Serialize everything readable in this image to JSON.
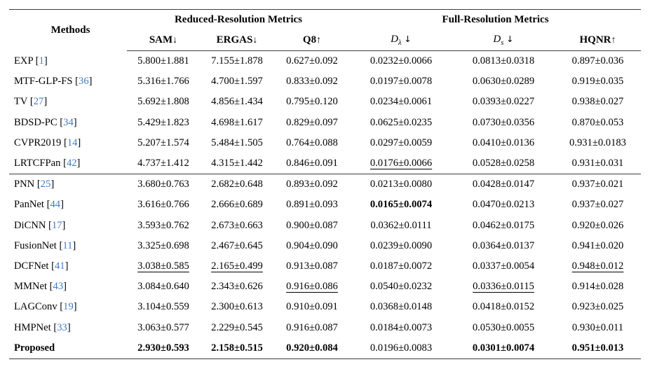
{
  "colors": {
    "citation": "#3f7cc4",
    "rule": "#3c3c3c",
    "text": "#000000"
  },
  "table": {
    "methods_header": "Methods",
    "group_headers": [
      {
        "label": "Reduced-Resolution Metrics",
        "span": 3
      },
      {
        "label": "Full-Resolution Metrics",
        "span": 3
      }
    ],
    "columns": [
      {
        "label": "SAM",
        "arrow": "↓"
      },
      {
        "label": "ERGAS",
        "arrow": "↓"
      },
      {
        "label": "Q8",
        "arrow": "↑"
      },
      {
        "label": "D",
        "sub": "λ",
        "arrow": "↓"
      },
      {
        "label": "D",
        "sub": "s",
        "arrow": "↓"
      },
      {
        "label": "HQNR",
        "arrow": "↑"
      }
    ],
    "rows": [
      {
        "method": "EXP",
        "cite": "1",
        "values": [
          "5.800±1.881",
          "7.155±1.878",
          "0.627±0.092",
          "0.0232±0.0066",
          "0.0813±0.0318",
          "0.897±0.036"
        ],
        "styles": [
          "",
          "",
          "",
          "",
          "",
          ""
        ]
      },
      {
        "method": "MTF-GLP-FS",
        "cite": "36",
        "values": [
          "5.316±1.766",
          "4.700±1.597",
          "0.833±0.092",
          "0.0197±0.0078",
          "0.0630±0.0289",
          "0.919±0.035"
        ],
        "styles": [
          "",
          "",
          "",
          "",
          "",
          ""
        ]
      },
      {
        "method": "TV",
        "cite": "27",
        "values": [
          "5.692±1.808",
          "4.856±1.434",
          "0.795±0.120",
          "0.0234±0.0061",
          "0.0393±0.0227",
          "0.938±0.027"
        ],
        "styles": [
          "",
          "",
          "",
          "",
          "",
          ""
        ]
      },
      {
        "method": "BDSD-PC",
        "cite": "34",
        "values": [
          "5.429±1.823",
          "4.698±1.617",
          "0.829±0.097",
          "0.0625±0.0235",
          "0.0730±0.0356",
          "0.870±0.053"
        ],
        "styles": [
          "",
          "",
          "",
          "",
          "",
          ""
        ]
      },
      {
        "method": "CVPR2019",
        "cite": "14",
        "values": [
          "5.207±1.574",
          "5.484±1.505",
          "0.764±0.088",
          "0.0297±0.0059",
          "0.0410±0.0136",
          "0.931±0.0183"
        ],
        "styles": [
          "",
          "",
          "",
          "",
          "",
          ""
        ]
      },
      {
        "method": "LRTCFPan",
        "cite": "42",
        "values": [
          "4.737±1.412",
          "4.315±1.442",
          "0.846±0.091",
          "0.0176±0.0066",
          "0.0528±0.0258",
          "0.931±0.031"
        ],
        "styles": [
          "",
          "",
          "",
          "u",
          "",
          ""
        ]
      },
      {
        "method": "PNN",
        "cite": "25",
        "rule_above": true,
        "values": [
          "3.680±0.763",
          "2.682±0.648",
          "0.893±0.092",
          "0.0213±0.0080",
          "0.0428±0.0147",
          "0.937±0.021"
        ],
        "styles": [
          "",
          "",
          "",
          "",
          "",
          ""
        ]
      },
      {
        "method": "PanNet",
        "cite": "44",
        "values": [
          "3.616±0.766",
          "2.666±0.689",
          "0.891±0.093",
          "0.0165±0.0074",
          "0.0470±0.0213",
          "0.937±0.027"
        ],
        "styles": [
          "",
          "",
          "",
          "b",
          "",
          ""
        ]
      },
      {
        "method": "DiCNN",
        "cite": "17",
        "values": [
          "3.593±0.762",
          "2.673±0.663",
          "0.900±0.087",
          "0.0362±0.0111",
          "0.0462±0.0175",
          "0.920±0.026"
        ],
        "styles": [
          "",
          "",
          "",
          "",
          "",
          ""
        ]
      },
      {
        "method": "FusionNet",
        "cite": "11",
        "values": [
          "3.325±0.698",
          "2.467±0.645",
          "0.904±0.090",
          "0.0239±0.0090",
          "0.0364±0.0137",
          "0.941±0.020"
        ],
        "styles": [
          "",
          "",
          "",
          "",
          "",
          ""
        ]
      },
      {
        "method": "DCFNet",
        "cite": "41",
        "values": [
          "3.038±0.585",
          "2.165±0.499",
          "0.913±0.087",
          "0.0187±0.0072",
          "0.0337±0.0054",
          "0.948±0.012"
        ],
        "styles": [
          "u",
          "u",
          "",
          "",
          "",
          "u"
        ]
      },
      {
        "method": "MMNet",
        "cite": "43",
        "values": [
          "3.084±0.640",
          "2.343±0.626",
          "0.916±0.086",
          "0.0540±0.0232",
          "0.0336±0.0115",
          "0.914±0.028"
        ],
        "styles": [
          "",
          "",
          "u",
          "",
          "u",
          ""
        ]
      },
      {
        "method": "LAGConv",
        "cite": "19",
        "values": [
          "3.104±0.559",
          "2.300±0.613",
          "0.910±0.091",
          "0.0368±0.0148",
          "0.0418±0.0152",
          "0.923±0.025"
        ],
        "styles": [
          "",
          "",
          "",
          "",
          "",
          ""
        ]
      },
      {
        "method": "HMPNet",
        "cite": "33",
        "values": [
          "3.063±0.577",
          "2.229±0.545",
          "0.916±0.087",
          "0.0184±0.0073",
          "0.0530±0.0055",
          "0.930±0.011"
        ],
        "styles": [
          "",
          "",
          "",
          "",
          "",
          ""
        ]
      },
      {
        "method": "Proposed",
        "cite": null,
        "bold": true,
        "values": [
          "2.930±0.593",
          "2.158±0.515",
          "0.920±0.084",
          "0.0196±0.0083",
          "0.0301±0.0074",
          "0.951±0.013"
        ],
        "styles": [
          "b",
          "b",
          "b",
          "",
          "b",
          "b"
        ]
      }
    ]
  }
}
